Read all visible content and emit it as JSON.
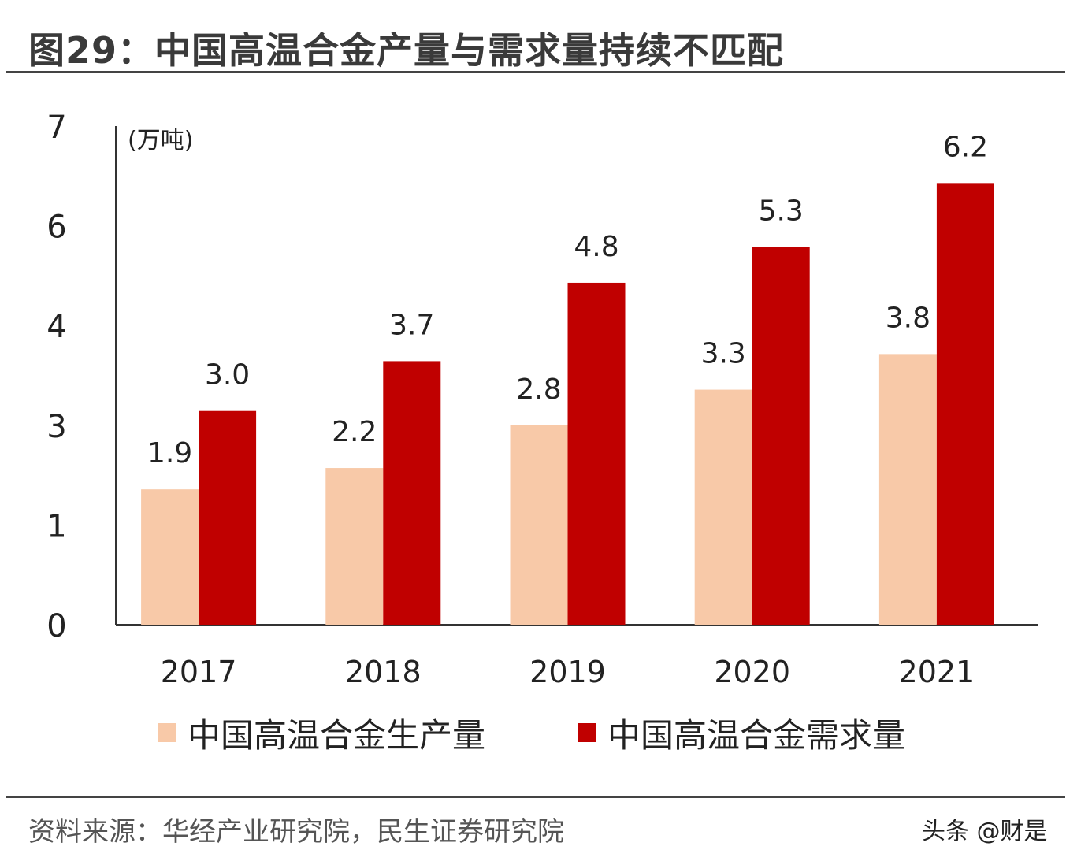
{
  "title": "图29：中国高温合金产量与需求量持续不匹配",
  "source": "资料来源：华经产业研究院，民生证券研究院",
  "watermark": "头条 @财是",
  "chart_data": {
    "type": "bar",
    "title": "图29：中国高温合金产量与需求量持续不匹配",
    "ylabel": "(万吨)",
    "xlabel": "",
    "categories": [
      "2017",
      "2018",
      "2019",
      "2020",
      "2021"
    ],
    "series": [
      {
        "name": "中国高温合金生产量",
        "values": [
          1.9,
          2.2,
          2.8,
          3.3,
          3.8
        ],
        "labels": [
          "1.9",
          "2.2",
          "2.8",
          "3.3",
          "3.8"
        ],
        "color": "#f8c9a8"
      },
      {
        "name": "中国高温合金需求量",
        "values": [
          3.0,
          3.7,
          4.8,
          5.3,
          6.2
        ],
        "labels": [
          "3.0",
          "3.7",
          "4.8",
          "5.3",
          "6.2"
        ],
        "color": "#c00000"
      }
    ],
    "ylim": [
      0,
      7
    ],
    "yticks": [
      0,
      1.4,
      2.8,
      4.2,
      5.6,
      7
    ],
    "ytick_labels": [
      "0",
      "1",
      "3",
      "4",
      "6",
      "7"
    ],
    "grid": false,
    "legend": "bottom"
  }
}
